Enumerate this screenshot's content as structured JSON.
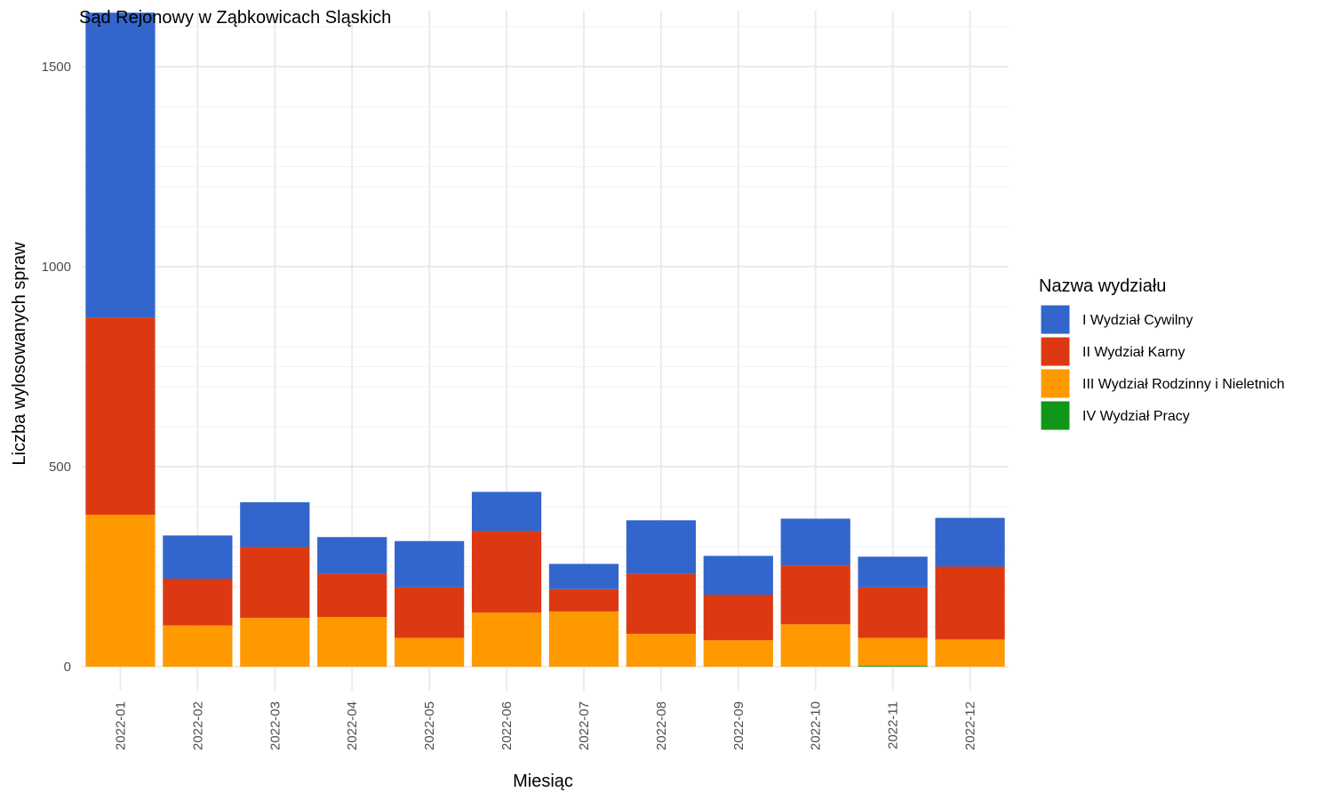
{
  "chart_data": {
    "type": "bar",
    "stacked": true,
    "title": "Sąd Rejonowy w Ząbkowicach Sląskich",
    "xlabel": "Miesiąc",
    "ylabel": "Liczba wylosowanych spraw",
    "ylim": [
      -60,
      1640
    ],
    "yticks": [
      0,
      500,
      1000,
      1500
    ],
    "grid": true,
    "legend_position": "right",
    "legend_title": "Nazwa wydziału",
    "categories": [
      "2022-01",
      "2022-02",
      "2022-03",
      "2022-04",
      "2022-05",
      "2022-06",
      "2022-07",
      "2022-08",
      "2022-09",
      "2022-10",
      "2022-11",
      "2022-12"
    ],
    "series": [
      {
        "name": "IV Wydział Pracy",
        "color": "#109618",
        "values": [
          0,
          0,
          0,
          0,
          0,
          0,
          0,
          0,
          0,
          0,
          2,
          0
        ]
      },
      {
        "name": "III Wydział Rodzinny i Nieletnich",
        "color": "#ff9900",
        "values": [
          380,
          103,
          122,
          124,
          72,
          135,
          138,
          82,
          66,
          106,
          70,
          68
        ]
      },
      {
        "name": "II Wydział Karny",
        "color": "#dc3912",
        "values": [
          493,
          117,
          177,
          108,
          126,
          204,
          56,
          150,
          114,
          147,
          126,
          182
        ]
      },
      {
        "name": "I Wydział Cywilny",
        "color": "#3366cc",
        "values": [
          762,
          108,
          112,
          92,
          116,
          98,
          63,
          134,
          97,
          117,
          77,
          122
        ]
      }
    ],
    "legend_order": [
      "I Wydział Cywilny",
      "II Wydział Karny",
      "III Wydział Rodzinny i Nieletnich",
      "IV Wydział Pracy"
    ]
  }
}
